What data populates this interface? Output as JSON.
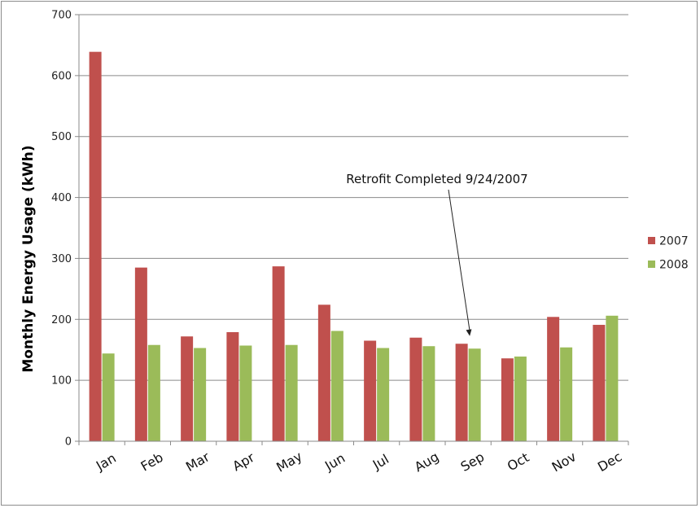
{
  "chart_data": {
    "type": "bar",
    "title": "",
    "xlabel": "",
    "ylabel": "Monthly Energy Usage (kWh)",
    "ylim": [
      0,
      700
    ],
    "yticks": [
      0,
      100,
      200,
      300,
      400,
      500,
      600,
      700
    ],
    "grid": true,
    "legend": "right",
    "categories": [
      "Jan",
      "Feb",
      "Mar",
      "Apr",
      "May",
      "Jun",
      "Jul",
      "Aug",
      "Sep",
      "Oct",
      "Nov",
      "Dec"
    ],
    "series": [
      {
        "name": "2007",
        "color": "#c0504d",
        "values": [
          639,
          285,
          172,
          179,
          287,
          224,
          165,
          170,
          160,
          136,
          204,
          191
        ]
      },
      {
        "name": "2008",
        "color": "#9bbb59",
        "values": [
          144,
          158,
          153,
          157,
          158,
          181,
          153,
          156,
          152,
          139,
          154,
          206
        ]
      }
    ],
    "annotation": {
      "text": "Retrofit Completed 9/24/2007",
      "category": "Sep",
      "value": 170
    }
  }
}
